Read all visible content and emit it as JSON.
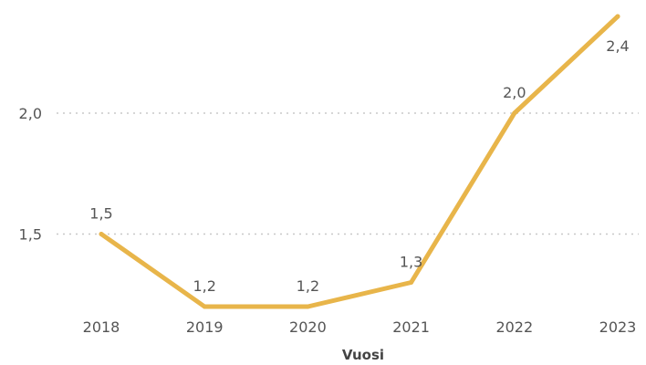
{
  "chart_data": {
    "type": "line",
    "title": "",
    "xlabel": "Vuosi",
    "ylabel": "",
    "categories": [
      "2018",
      "2019",
      "2020",
      "2021",
      "2022",
      "2023"
    ],
    "series": [
      {
        "values": [
          1.5,
          1.2,
          1.2,
          1.3,
          2.0,
          2.4
        ]
      }
    ],
    "data_labels": [
      "1,5",
      "1,2",
      "1,2",
      "1,3",
      "2,0",
      "2,4"
    ],
    "y_ticks": [
      {
        "value": 1.5,
        "label": "1,5"
      },
      {
        "value": 2.0,
        "label": "2,0"
      }
    ],
    "ylim": [
      1.2,
      2.4
    ],
    "grid": true,
    "line_color": "#e8b54a",
    "grid_color": "#c8c8c8",
    "text_color": "#555555"
  }
}
